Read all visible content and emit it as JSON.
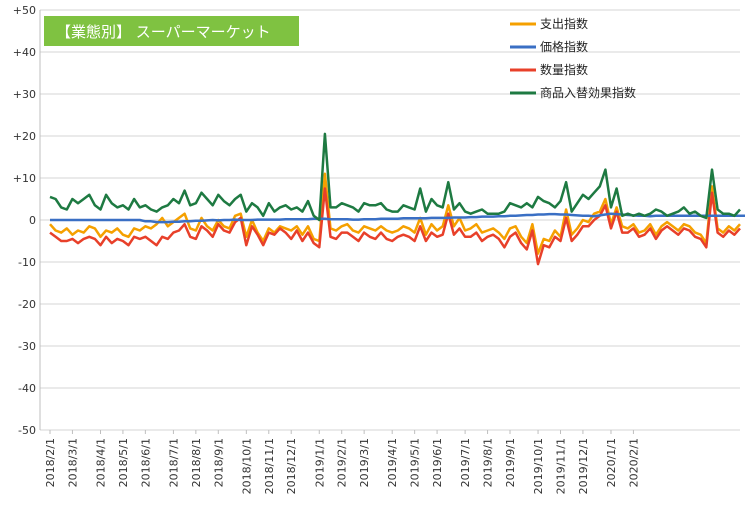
{
  "chart_data": {
    "type": "line",
    "title": "【業態別】 スーパーマーケット",
    "title_bg": "#7fc241",
    "ylim": [
      -50,
      50
    ],
    "y_ticks": [
      50,
      40,
      30,
      20,
      10,
      0,
      -10,
      -20,
      -30,
      -40,
      -50
    ],
    "y_tick_labels": [
      "+50",
      "+40",
      "+30",
      "+20",
      "+10",
      "0",
      "-10",
      "-20",
      "-30",
      "-40",
      "-50"
    ],
    "x_tick_labels": [
      "2018/2/1",
      "2018/3/1",
      "2018/4/1",
      "2018/5/1",
      "2018/6/1",
      "2018/7/1",
      "2018/8/1",
      "2018/9/1",
      "2018/10/1",
      "2018/11/1",
      "2018/12/1",
      "2019/1/1",
      "2019/2/1",
      "2019/3/1",
      "2019/4/1",
      "2019/5/1",
      "2019/6/1",
      "2019/7/1",
      "2019/8/1",
      "2019/9/1",
      "2019/10/1",
      "2019/11/1",
      "2019/12/1",
      "2020/1/1",
      "2020/2/1"
    ],
    "x_tick_positions": [
      0,
      4,
      9,
      13,
      17,
      22,
      26,
      30,
      35,
      39,
      43,
      48,
      52,
      56,
      61,
      65,
      69,
      74,
      78,
      82,
      87,
      91,
      95,
      100,
      104
    ],
    "grid": "horizontal",
    "legend_position": "top-right",
    "series": [
      {
        "name": "支出指数",
        "color": "#f5a000",
        "values": [
          -1.0,
          -2.5,
          -3.0,
          -2.0,
          -3.5,
          -2.5,
          -3.0,
          -1.5,
          -2.0,
          -4.0,
          -2.5,
          -3.0,
          -2.0,
          -3.5,
          -4.0,
          -2.0,
          -2.5,
          -1.5,
          -2.0,
          -1.0,
          0.5,
          -1.5,
          -0.5,
          0.5,
          1.5,
          -2.0,
          -2.5,
          0.5,
          -1.5,
          -2.5,
          0.0,
          -1.5,
          -2.0,
          1.0,
          1.5,
          -4.0,
          0.0,
          -3.0,
          -5.0,
          -2.0,
          -3.0,
          -1.5,
          -2.0,
          -2.5,
          -1.5,
          -3.5,
          -1.5,
          -4.5,
          -5.0,
          11.0,
          -2.0,
          -2.5,
          -1.5,
          -1.0,
          -2.5,
          -3.0,
          -1.5,
          -2.0,
          -2.5,
          -1.5,
          -2.5,
          -3.0,
          -2.5,
          -1.5,
          -2.0,
          -3.0,
          0.5,
          -3.5,
          -1.0,
          -2.5,
          -1.5,
          3.5,
          -1.5,
          0.5,
          -2.5,
          -2.0,
          -1.0,
          -3.0,
          -2.5,
          -2.0,
          -3.0,
          -4.5,
          -2.0,
          -1.5,
          -4.0,
          -5.5,
          -1.0,
          -8.0,
          -4.5,
          -5.0,
          -2.5,
          -4.0,
          2.5,
          -3.5,
          -2.0,
          0.0,
          -0.5,
          1.5,
          2.0,
          5.0,
          -1.0,
          3.0,
          -1.5,
          -2.0,
          -1.0,
          -3.0,
          -2.5,
          -1.0,
          -3.5,
          -1.5,
          -0.5,
          -1.5,
          -2.5,
          -1.0,
          -1.5,
          -3.0,
          -3.5,
          -5.5,
          8.0,
          -2.0,
          -3.0,
          -1.5,
          -2.5,
          -1.0
        ]
      },
      {
        "name": "価格指数",
        "color": "#3a6fc4",
        "values": [
          0.0,
          0.0,
          0.0,
          0.0,
          0.0,
          0.0,
          0.0,
          0.0,
          0.0,
          0.0,
          0.0,
          0.0,
          0.0,
          0.0,
          0.0,
          0.0,
          0.0,
          -0.3,
          -0.3,
          -0.5,
          -0.5,
          -0.5,
          -0.4,
          -0.4,
          -0.3,
          -0.3,
          -0.2,
          -0.2,
          -0.1,
          0.0,
          -0.1,
          0.0,
          0.0,
          0.1,
          0.0,
          0.0,
          0.0,
          0.1,
          0.1,
          0.1,
          0.1,
          0.1,
          0.2,
          0.2,
          0.2,
          0.2,
          0.2,
          0.3,
          0.3,
          0.3,
          0.2,
          0.2,
          0.2,
          0.2,
          0.1,
          0.1,
          0.2,
          0.2,
          0.2,
          0.3,
          0.3,
          0.3,
          0.3,
          0.4,
          0.4,
          0.4,
          0.4,
          0.4,
          0.5,
          0.5,
          0.5,
          0.5,
          0.6,
          0.6,
          0.6,
          0.7,
          0.7,
          0.8,
          0.8,
          0.8,
          0.9,
          0.9,
          1.0,
          1.0,
          1.1,
          1.2,
          1.2,
          1.3,
          1.3,
          1.4,
          1.4,
          1.3,
          1.3,
          1.2,
          1.1,
          1.0,
          1.0,
          0.9,
          1.1,
          1.3,
          1.5,
          1.4,
          1.3,
          1.2,
          1.1,
          1.0,
          1.0,
          0.9,
          1.0,
          1.0,
          1.0,
          1.0,
          1.0,
          1.0,
          1.0,
          1.0,
          1.0,
          1.0,
          1.0,
          1.0,
          1.0,
          1.0,
          1.0,
          1.0,
          1.0
        ]
      },
      {
        "name": "数量指数",
        "color": "#e8402a",
        "values": [
          -3.0,
          -4.0,
          -5.0,
          -5.0,
          -4.5,
          -5.5,
          -4.5,
          -4.0,
          -4.5,
          -6.0,
          -4.0,
          -5.5,
          -4.5,
          -5.0,
          -6.0,
          -4.0,
          -4.5,
          -4.0,
          -5.0,
          -6.0,
          -4.0,
          -4.5,
          -3.0,
          -2.5,
          -1.0,
          -4.0,
          -4.5,
          -1.5,
          -2.5,
          -4.0,
          -1.0,
          -2.5,
          -3.0,
          -0.5,
          0.5,
          -6.0,
          -1.5,
          -3.5,
          -6.0,
          -3.0,
          -3.5,
          -2.0,
          -3.0,
          -4.5,
          -2.5,
          -5.0,
          -3.0,
          -5.5,
          -6.5,
          7.5,
          -4.0,
          -4.5,
          -3.0,
          -3.0,
          -4.0,
          -5.0,
          -3.0,
          -4.0,
          -4.5,
          -3.0,
          -4.5,
          -5.0,
          -4.0,
          -3.5,
          -4.0,
          -5.0,
          -1.5,
          -5.0,
          -3.0,
          -4.0,
          -3.5,
          1.5,
          -3.5,
          -2.0,
          -4.0,
          -4.0,
          -3.0,
          -5.0,
          -4.0,
          -3.5,
          -4.5,
          -6.5,
          -4.0,
          -3.0,
          -5.5,
          -7.0,
          -2.5,
          -10.5,
          -6.0,
          -6.5,
          -4.0,
          -5.0,
          0.5,
          -5.0,
          -3.5,
          -1.5,
          -1.5,
          0.0,
          1.0,
          3.5,
          -2.0,
          2.0,
          -3.0,
          -3.0,
          -2.0,
          -4.0,
          -3.5,
          -2.0,
          -4.5,
          -2.5,
          -1.5,
          -2.5,
          -3.5,
          -2.0,
          -2.5,
          -4.0,
          -4.5,
          -6.5,
          6.5,
          -3.0,
          -4.0,
          -2.5,
          -3.5,
          -2.0
        ]
      },
      {
        "name": "商品入替効果指数",
        "color": "#1e7a42",
        "values": [
          5.5,
          5.0,
          3.0,
          2.5,
          5.0,
          4.0,
          5.0,
          6.0,
          3.5,
          2.5,
          6.0,
          4.0,
          3.0,
          3.5,
          2.5,
          5.0,
          3.0,
          3.5,
          2.5,
          2.0,
          3.0,
          3.5,
          5.0,
          4.0,
          7.0,
          3.5,
          4.0,
          6.5,
          5.0,
          3.5,
          6.0,
          4.5,
          3.5,
          5.0,
          6.0,
          2.0,
          4.0,
          3.0,
          1.0,
          4.0,
          2.0,
          3.0,
          3.5,
          2.5,
          3.0,
          2.0,
          4.5,
          1.0,
          0.0,
          20.5,
          3.0,
          3.0,
          4.0,
          3.5,
          3.0,
          2.0,
          4.0,
          3.5,
          3.5,
          4.0,
          2.5,
          2.0,
          2.0,
          3.5,
          3.0,
          2.5,
          7.5,
          2.0,
          5.0,
          3.5,
          3.0,
          9.0,
          2.5,
          4.0,
          2.0,
          1.5,
          2.0,
          2.5,
          1.5,
          1.5,
          1.5,
          2.0,
          4.0,
          3.5,
          3.0,
          4.0,
          3.0,
          5.5,
          4.5,
          4.0,
          3.0,
          4.5,
          9.0,
          2.0,
          4.0,
          6.0,
          5.0,
          6.5,
          8.0,
          12.0,
          3.0,
          7.5,
          1.0,
          1.5,
          1.0,
          1.5,
          1.0,
          1.5,
          2.5,
          2.0,
          1.0,
          1.5,
          2.0,
          3.0,
          1.5,
          2.0,
          1.0,
          0.5,
          12.0,
          2.5,
          1.5,
          1.5,
          1.0,
          2.5
        ]
      }
    ]
  }
}
